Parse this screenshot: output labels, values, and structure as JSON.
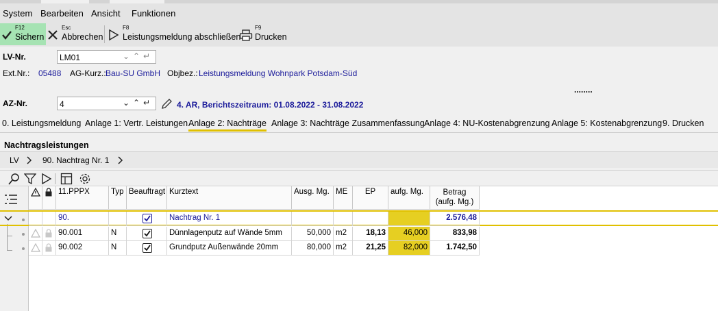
{
  "menu": [
    "System",
    "Bearbeiten",
    "Ansicht",
    "Funktionen"
  ],
  "toolbar": {
    "save": {
      "key": "F12",
      "label": "Sichern"
    },
    "cancel": {
      "key": "Esc",
      "label": "Abbrechen"
    },
    "complete": {
      "key": "F8",
      "label": "Leistungsmeldung abschließen"
    },
    "print": {
      "key": "F9",
      "label": "Drucken"
    }
  },
  "header": {
    "lv_label": "LV-Nr.",
    "lv_value": "LM01",
    "ext_label": "Ext.Nr.:",
    "ext_value": "05488",
    "ag_label": "AG-Kurz.:",
    "ag_value": "Bau-SU GmbH",
    "objbez_label": "Objbez.:",
    "objbez_value": "Leistungsmeldung Wohnpark Potsdam-Süd",
    "dots": "........",
    "az_label": "AZ-Nr.",
    "az_value": "4",
    "az_info": "4. AR, Berichtszeitraum: 01.08.2022 - 31.08.2022"
  },
  "tabs": [
    "0. Leistungsmeldung",
    "Anlage 1: Vertr. Leistungen",
    "Anlage 2: Nachträge",
    "Anlage 3: Nachträge Zusammenfassung",
    "Anlage 4: NU-Kostenabgrenzung",
    "Anlage 5: Kostenabgrenzung",
    "9. Drucken"
  ],
  "section_title": "Nachtragsleistungen",
  "breadcrumb": [
    "LV",
    "90. Nachtrag Nr. 1"
  ],
  "grid": {
    "columns": [
      "11.PPPX",
      "Typ",
      "Beauftragt",
      "Kurztext",
      "Ausg. Mg.",
      "ME",
      "EP",
      "aufg. Mg.",
      "Betrag",
      "(aufg. Mg.)"
    ],
    "rows": [
      {
        "pos": "90.",
        "typ": "",
        "text": "Nachtrag Nr. 1",
        "ausg": "",
        "me": "",
        "ep": "",
        "aufg": "",
        "betrag": "2.576,48"
      },
      {
        "pos": "90.001",
        "typ": "N",
        "text": "Dünnlagenputz auf Wände 5mm",
        "ausg": "50,000",
        "me": "m2",
        "ep": "18,13",
        "aufg": "46,000",
        "betrag": "833,98"
      },
      {
        "pos": "90.002",
        "typ": "N",
        "text": "Grundputz Außenwände 20mm",
        "ausg": "80,000",
        "me": "m2",
        "ep": "21,25",
        "aufg": "82,000",
        "betrag": "1.742,50"
      }
    ]
  },
  "colors": {
    "accent_yellow": "#e6cf22",
    "save_green": "#a6e3b3",
    "link_blue": "#1a1a9a"
  }
}
